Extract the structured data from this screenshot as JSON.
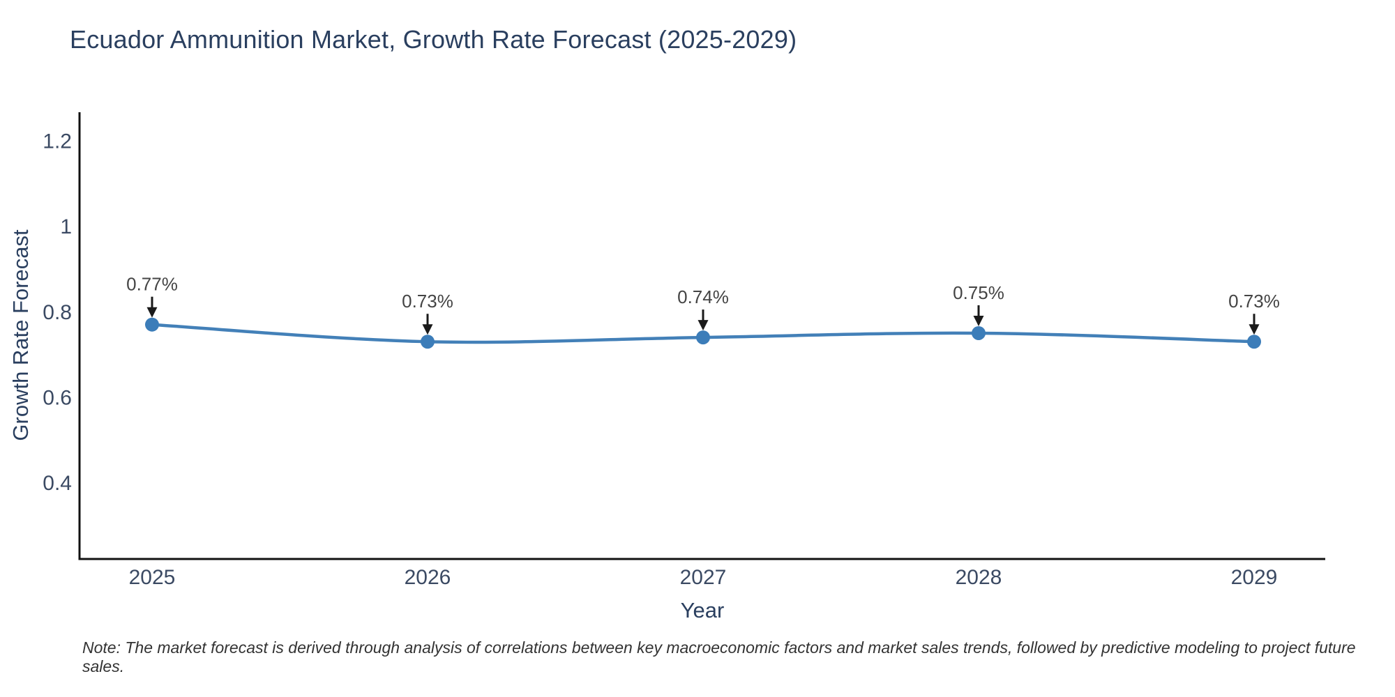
{
  "chart_data": {
    "type": "line",
    "title": "Ecuador Ammunition Market, Growth Rate Forecast (2025-2029)",
    "xlabel": "Year",
    "ylabel": "Growth Rate Forecast",
    "categories": [
      "2025",
      "2026",
      "2027",
      "2028",
      "2029"
    ],
    "series": [
      {
        "name": "Growth Rate Forecast",
        "values": [
          0.77,
          0.73,
          0.74,
          0.75,
          0.73
        ],
        "point_labels": [
          "0.77%",
          "0.73%",
          "0.74%",
          "0.75%",
          "0.73%"
        ]
      }
    ],
    "yticks": [
      "1.2",
      "1",
      "0.8",
      "0.6",
      "0.4"
    ],
    "ytick_values": [
      1.2,
      1.0,
      0.8,
      0.6,
      0.4
    ],
    "ylim": [
      0.22,
      1.27
    ],
    "grid": false,
    "legend_position": "none",
    "line_shape": "spline",
    "marker_style": "circle",
    "annotation_arrows": true,
    "note": "Note: The market forecast is derived through analysis of correlations between key macroeconomic factors and market sales trends, followed by predictive modeling to project future sales.",
    "colors": {
      "line": "#4380b8",
      "marker": "#3c7db9",
      "axis": "#111111",
      "arrow": "#1a1a1a",
      "title_text": "#2a3f5f",
      "axis_title_text": "#2a3f5f",
      "tick_text": "#3b4a63",
      "annotation_text": "#444444",
      "note_text": "#333333",
      "background": "#ffffff"
    }
  }
}
